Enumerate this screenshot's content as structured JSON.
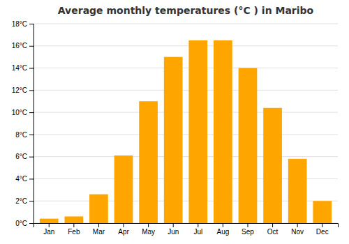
{
  "chart_data": {
    "type": "bar",
    "title": "Average monthly temperatures (°C ) in Maribo",
    "categories": [
      "Jan",
      "Feb",
      "Mar",
      "Apr",
      "May",
      "Jun",
      "Jul",
      "Aug",
      "Sep",
      "Oct",
      "Nov",
      "Dec"
    ],
    "values": [
      0.4,
      0.6,
      2.6,
      6.1,
      11.0,
      15.0,
      16.5,
      16.5,
      14.0,
      10.4,
      5.8,
      2.0
    ],
    "color": "#FFA500",
    "ylim": [
      0,
      18
    ],
    "yticks": [
      {
        "value": 0,
        "label": "0°C"
      },
      {
        "value": 2,
        "label": "2°C"
      },
      {
        "value": 4,
        "label": "4°C"
      },
      {
        "value": 6,
        "label": "6°C"
      },
      {
        "value": 8,
        "label": "8°C"
      },
      {
        "value": 10,
        "label": "10°C"
      },
      {
        "value": 12,
        "label": "12°C"
      },
      {
        "value": 14,
        "label": "14°C"
      },
      {
        "value": 16,
        "label": "16°C"
      },
      {
        "value": 18,
        "label": "18°C"
      }
    ],
    "grid": true
  }
}
